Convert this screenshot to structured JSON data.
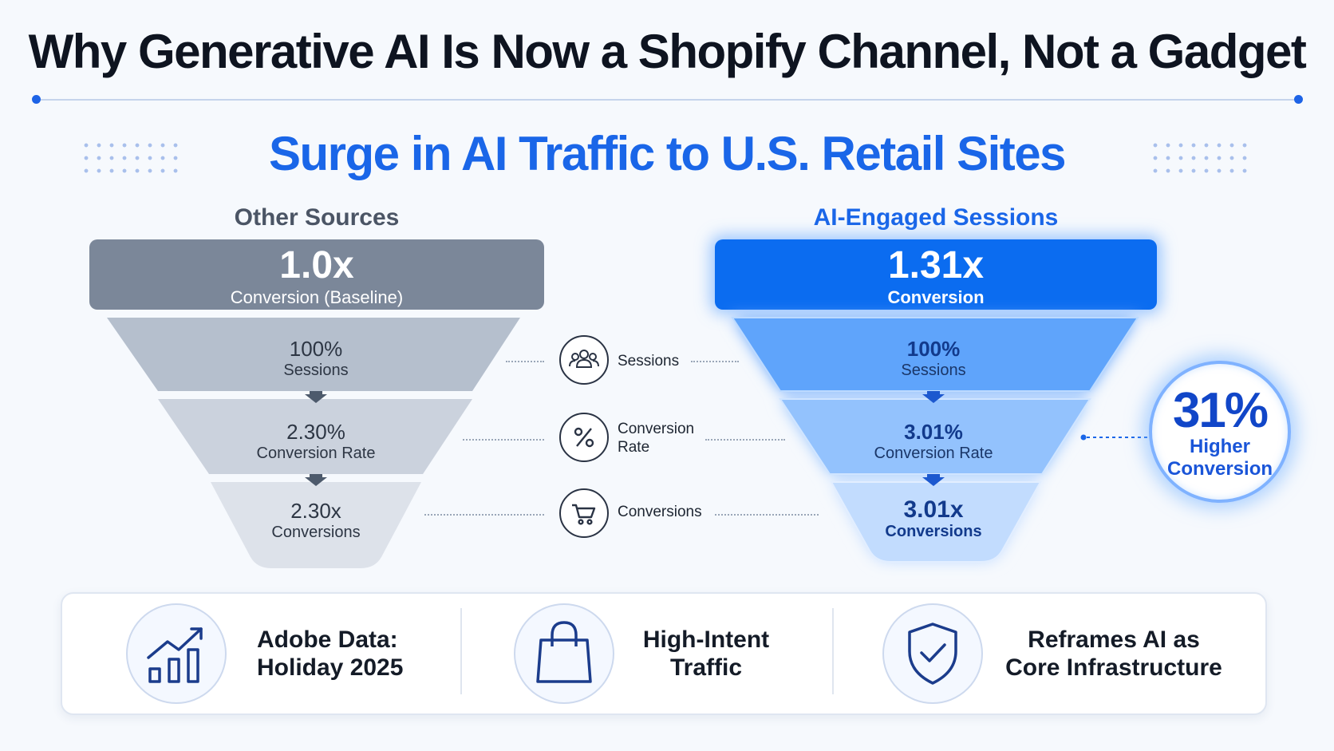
{
  "title": "Why Generative AI Is Now a Shopify Channel, Not a Gadget",
  "subtitle": "Surge in AI Traffic to U.S. Retail Sites",
  "left": {
    "label": "Other Sources",
    "header_value": "1.0x",
    "header_caption": "Conversion (Baseline)",
    "stages": [
      {
        "value": "100%",
        "label": "Sessions"
      },
      {
        "value": "2.30%",
        "label": "Conversion Rate"
      },
      {
        "value": "2.30x",
        "label": "Conversions"
      }
    ]
  },
  "right": {
    "label": "AI-Engaged Sessions",
    "header_value": "1.31x",
    "header_caption": "Conversion",
    "stages": [
      {
        "value": "100%",
        "label": "Sessions"
      },
      {
        "value": "3.01%",
        "label": "Conversion Rate"
      },
      {
        "value": "3.01x",
        "label": "Conversions"
      }
    ]
  },
  "middle": [
    {
      "icon": "users-icon",
      "line1": "Sessions",
      "line2": ""
    },
    {
      "icon": "percent-icon",
      "line1": "Conversion",
      "line2": "Rate"
    },
    {
      "icon": "cart-icon",
      "line1": "Conversions",
      "line2": ""
    }
  ],
  "callout": {
    "value": "31%",
    "line1": "Higher",
    "line2": "Conversion"
  },
  "footer": [
    {
      "icon": "trend-chart-icon",
      "line1": "Adobe Data:",
      "line2": "Holiday 2025"
    },
    {
      "icon": "shopping-bag-icon",
      "line1": "High-Intent",
      "line2": "Traffic"
    },
    {
      "icon": "shield-check-icon",
      "line1": "Reframes AI as",
      "line2": "Core Infrastructure"
    }
  ],
  "colors": {
    "accent": "#1a66e8",
    "gray_box": "#7b8799",
    "blue_box": "#0b6cf0"
  }
}
